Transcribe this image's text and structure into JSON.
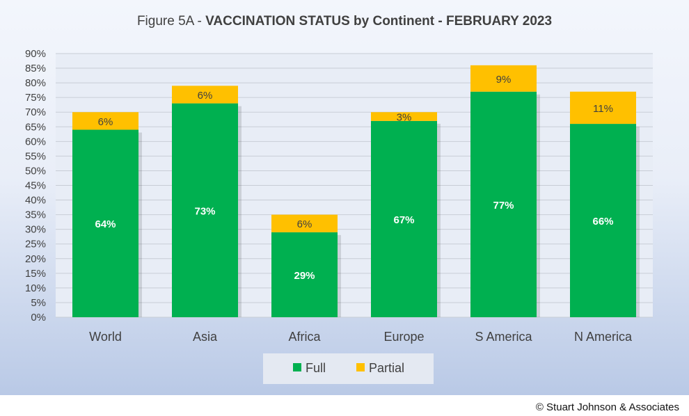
{
  "title": {
    "prefix": "Figure 5A - ",
    "main": "VACCINATION STATUS by Continent - FEBRUARY 2023"
  },
  "colors": {
    "full": "#00b050",
    "partial": "#ffc000",
    "grid": "#c8cdd6",
    "axis_text": "#404040"
  },
  "chart_data": {
    "type": "bar",
    "stacked": true,
    "categories": [
      "World",
      "Asia",
      "Africa",
      "Europe",
      "S America",
      "N America"
    ],
    "series": [
      {
        "name": "Full",
        "values": [
          64,
          73,
          29,
          67,
          77,
          66
        ],
        "labels": [
          "64%",
          "73%",
          "29%",
          "67%",
          "77%",
          "66%"
        ]
      },
      {
        "name": "Partial",
        "values": [
          6,
          6,
          6,
          3,
          9,
          11
        ],
        "labels": [
          "6%",
          "6%",
          "6%",
          "3%",
          "9%",
          "11%"
        ]
      }
    ],
    "ylim": [
      0,
      90
    ],
    "yticks": [
      "0%",
      "5%",
      "10%",
      "15%",
      "20%",
      "25%",
      "30%",
      "35%",
      "40%",
      "45%",
      "50%",
      "55%",
      "60%",
      "65%",
      "70%",
      "75%",
      "80%",
      "85%",
      "90%"
    ],
    "grid": true,
    "legend_position": "bottom"
  },
  "copyright": "© Stuart Johnson & Associates"
}
